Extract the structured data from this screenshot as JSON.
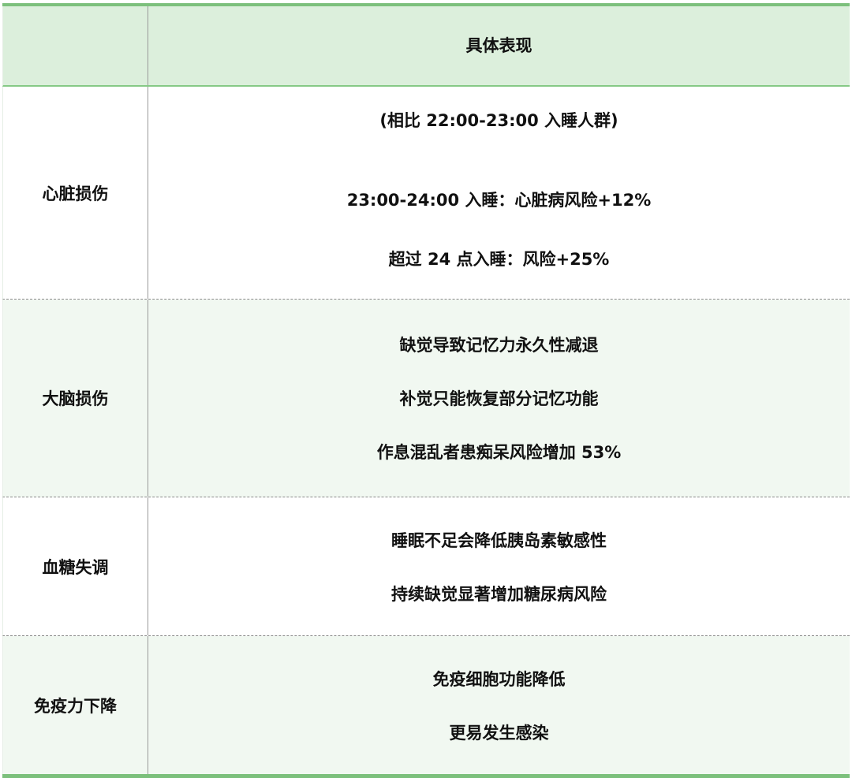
{
  "header": {
    "col1": "",
    "col2": "具体表现"
  },
  "rows": [
    {
      "category": "心脏损伤",
      "lines": [
        "(相比 22:00-23:00 入睡人群)",
        "23:00-24:00 入睡：心脏病风险+12%",
        "超过 24 点入睡：风险+25%"
      ]
    },
    {
      "category": "大脑损伤",
      "lines": [
        "缺觉导致记忆力永久性减退",
        "补觉只能恢复部分记忆功能",
        "作息混乱者患痴呆风险增加 53%"
      ]
    },
    {
      "category": "血糖失调",
      "lines": [
        "睡眠不足会降低胰岛素敏感性",
        "持续缺觉显著增加糖尿病风险"
      ]
    },
    {
      "category": "免疫力下降",
      "lines": [
        "免疫细胞功能降低",
        "更易发生感染"
      ]
    }
  ],
  "colors": {
    "header_bg": "#dcefdc",
    "accent": "#7cc07c",
    "alt_row_bg": "#f1f8f1"
  }
}
